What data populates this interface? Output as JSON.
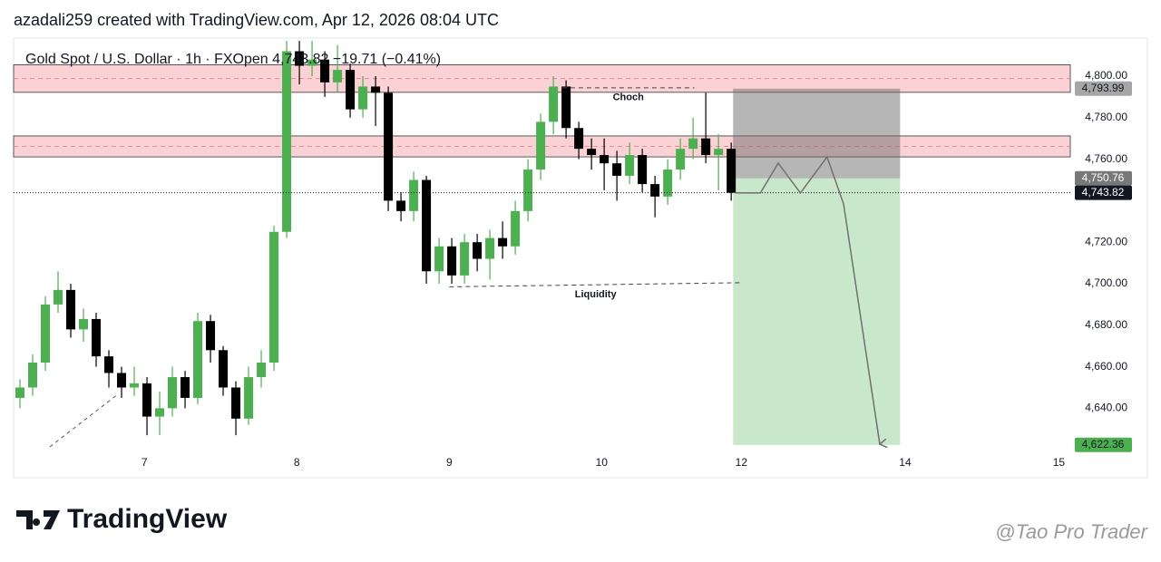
{
  "header": {
    "credit": "azadali259 created with TradingView.com, Apr 12, 2026 08:04 UTC"
  },
  "chart_data": {
    "type": "candlestick",
    "title": "Gold Spot / U.S. Dollar · 1h · FXOpen",
    "change": "−19.71 (−0.41%)",
    "last": {
      "value": 4743.82,
      "label": "4,743.82"
    },
    "x": [
      1,
      3,
      5,
      7,
      9,
      11,
      13,
      15,
      17,
      19,
      21,
      23,
      25,
      27,
      29,
      31,
      33,
      35,
      37,
      39,
      41,
      43,
      45,
      47,
      49,
      51,
      53,
      55,
      57,
      59,
      61,
      63,
      65,
      67,
      69,
      71,
      73,
      75,
      77,
      79,
      81,
      83,
      85,
      87,
      89,
      91,
      93,
      95,
      97,
      99,
      101,
      103,
      105,
      107,
      109,
      111,
      113
    ],
    "open": [
      4645,
      4650,
      4662,
      4690,
      4697,
      4678,
      4683,
      4665,
      4657,
      4650,
      4652,
      4636,
      4640,
      4655,
      4645,
      4682,
      4668,
      4650,
      4635,
      4655,
      4662,
      4725,
      4812,
      4805,
      4808,
      4797,
      4803,
      4784,
      4795,
      4792,
      4740,
      4735,
      4750,
      4706,
      4718,
      4704,
      4720,
      4712,
      4722,
      4718,
      4735,
      4755,
      4778,
      4795,
      4775,
      4765,
      4762,
      4758,
      4752,
      4762,
      4748,
      4742,
      4755,
      4765,
      4770,
      4762,
      4765
    ],
    "high": [
      4654,
      4666,
      4694,
      4706,
      4700,
      4688,
      4686,
      4668,
      4660,
      4660,
      4655,
      4648,
      4660,
      4658,
      4686,
      4685,
      4670,
      4653,
      4660,
      4668,
      4728,
      4817,
      4817,
      4817,
      4812,
      4815,
      4806,
      4800,
      4800,
      4795,
      4744,
      4754,
      4752,
      4722,
      4722,
      4724,
      4724,
      4726,
      4730,
      4740,
      4760,
      4782,
      4800,
      4798,
      4778,
      4770,
      4770,
      4764,
      4768,
      4765,
      4752,
      4760,
      4770,
      4780,
      4792,
      4772,
      4768
    ],
    "low": [
      4640,
      4646,
      4658,
      4686,
      4674,
      4672,
      4660,
      4650,
      4645,
      4646,
      4627,
      4627,
      4636,
      4640,
      4642,
      4662,
      4646,
      4627,
      4632,
      4650,
      4658,
      4722,
      4796,
      4800,
      4790,
      4792,
      4780,
      4780,
      4776,
      4735,
      4730,
      4730,
      4700,
      4700,
      4700,
      4700,
      4706,
      4702,
      4712,
      4714,
      4730,
      4750,
      4772,
      4770,
      4760,
      4755,
      4745,
      4740,
      4748,
      4744,
      4732,
      4738,
      4750,
      4760,
      4758,
      4745,
      4740
    ],
    "close": [
      4650,
      4662,
      4690,
      4697,
      4678,
      4683,
      4665,
      4657,
      4650,
      4652,
      4636,
      4640,
      4655,
      4645,
      4682,
      4668,
      4650,
      4635,
      4655,
      4662,
      4725,
      4812,
      4805,
      4808,
      4797,
      4803,
      4784,
      4795,
      4792,
      4740,
      4735,
      4750,
      4706,
      4718,
      4704,
      4720,
      4712,
      4722,
      4718,
      4735,
      4755,
      4778,
      4795,
      4775,
      4765,
      4762,
      4758,
      4752,
      4762,
      4748,
      4742,
      4755,
      4765,
      4770,
      4762,
      4765,
      4743.82
    ],
    "up_color": "#4caf50",
    "down_color": "#000000",
    "xlim": [
      0,
      166.4
    ],
    "xticks": [
      {
        "value": 20.6,
        "label": "7"
      },
      {
        "value": 44.6,
        "label": "8"
      },
      {
        "value": 68.6,
        "label": "9"
      },
      {
        "value": 92.6,
        "label": "10"
      },
      {
        "value": 114.6,
        "label": "12"
      },
      {
        "value": 140.4,
        "label": "14"
      },
      {
        "value": 164.6,
        "label": "15"
      }
    ],
    "ylim": [
      4619.65,
      4818.34
    ],
    "yticks": [
      {
        "value": 4640,
        "label": "4,640.00"
      },
      {
        "value": 4660,
        "label": "4,660.00"
      },
      {
        "value": 4680,
        "label": "4,680.00"
      },
      {
        "value": 4700,
        "label": "4,700.00"
      },
      {
        "value": 4720,
        "label": "4,720.00"
      },
      {
        "value": 4760,
        "label": "4,760.00"
      },
      {
        "value": 4780,
        "label": "4,780.00"
      },
      {
        "value": 4800,
        "label": "4,800.00"
      }
    ],
    "zones": [
      {
        "top": 4805.5,
        "bottom": 4792.2
      },
      {
        "top": 4771.2,
        "bottom": 4761.1
      }
    ],
    "zone_color": "#f9c9cd",
    "position": {
      "x": [
        113.3,
        139.6
      ],
      "stop": 4793.99,
      "stop_label": "4,793.99",
      "entry": 4750.76,
      "entry_label": "4,750.76",
      "target": 4622.36,
      "target_label": "4,622.36"
    },
    "annotations": [
      {
        "text": "Choch",
        "x": [
          86.4,
          107.2
        ],
        "y": [
          4794.4,
          4794.4
        ]
      },
      {
        "text": "Liquidity",
        "x": [
          68.6,
          114.7
        ],
        "y": [
          4698.5,
          4700.5
        ]
      }
    ],
    "projection": {
      "x": [
        113.6,
        117.6,
        120.4,
        123.9,
        128.1,
        130.7,
        136.4
      ],
      "y": [
        4743.8,
        4743.7,
        4758.1,
        4743.7,
        4761.1,
        4738.4,
        4622.7
      ]
    },
    "trendline": {
      "x": [
        5.7,
        16.4
      ],
      "y": [
        4621.4,
        4646.7
      ]
    }
  },
  "logo": {
    "text": "TradingView"
  },
  "watermark": "@Tao Pro Trader"
}
